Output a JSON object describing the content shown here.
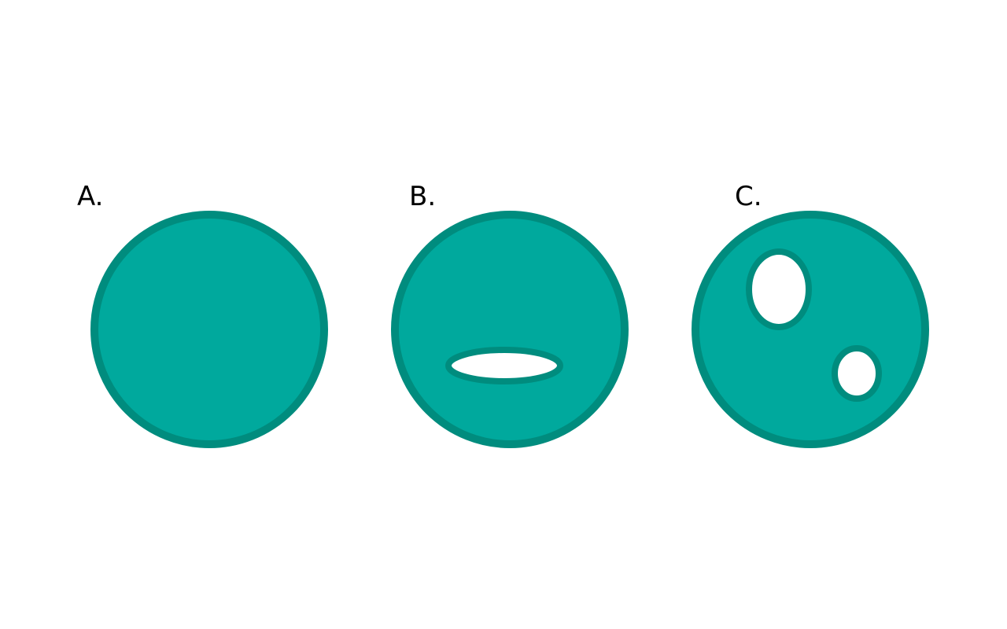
{
  "colors": {
    "background": "#ffffff",
    "disk_fill": "#00a99d",
    "disk_outline": "#008c7e",
    "hole_fill": "#ffffff",
    "label": "#000000"
  },
  "panels": [
    {
      "label": "A.",
      "holes": 0,
      "description_hole_shapes": []
    },
    {
      "label": "B.",
      "holes": 1,
      "description_hole_shapes": [
        "wide-ellipse"
      ]
    },
    {
      "label": "C.",
      "holes": 2,
      "description_hole_shapes": [
        "tall-ellipse",
        "small-ellipse"
      ]
    }
  ]
}
